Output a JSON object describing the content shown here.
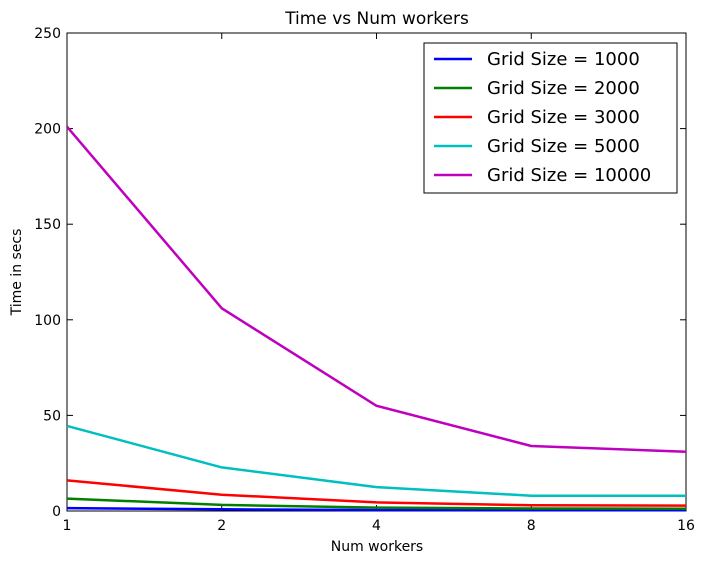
{
  "chart_data": {
    "type": "line",
    "title": "Time vs Num workers",
    "xlabel": "Num workers",
    "ylabel": "Time in secs",
    "x": [
      1,
      2,
      4,
      8,
      16
    ],
    "x_tick_labels": [
      "1",
      "2",
      "4",
      "8",
      "16"
    ],
    "x_scale": "log2",
    "ylim": [
      0,
      250
    ],
    "y_ticks": [
      0,
      50,
      100,
      150,
      200,
      250
    ],
    "y_tick_labels": [
      "0",
      "50",
      "100",
      "150",
      "200",
      "250"
    ],
    "grid": false,
    "legend_position": "top-right",
    "series": [
      {
        "name": "Grid Size = 1000",
        "color": "#0000ff",
        "values": [
          1.5,
          0.9,
          0.5,
          0.4,
          0.4
        ]
      },
      {
        "name": "Grid Size = 2000",
        "color": "#008000",
        "values": [
          6.5,
          3.2,
          1.8,
          1.3,
          1.2
        ]
      },
      {
        "name": "Grid Size = 3000",
        "color": "#ff0000",
        "values": [
          16,
          8.5,
          4.5,
          3.0,
          2.8
        ]
      },
      {
        "name": "Grid Size = 5000",
        "color": "#00bfbf",
        "values": [
          44.5,
          22.8,
          12.5,
          8.0,
          8.0
        ]
      },
      {
        "name": "Grid Size = 10000",
        "color": "#bf00bf",
        "values": [
          201,
          106,
          55,
          34,
          31
        ]
      }
    ]
  }
}
